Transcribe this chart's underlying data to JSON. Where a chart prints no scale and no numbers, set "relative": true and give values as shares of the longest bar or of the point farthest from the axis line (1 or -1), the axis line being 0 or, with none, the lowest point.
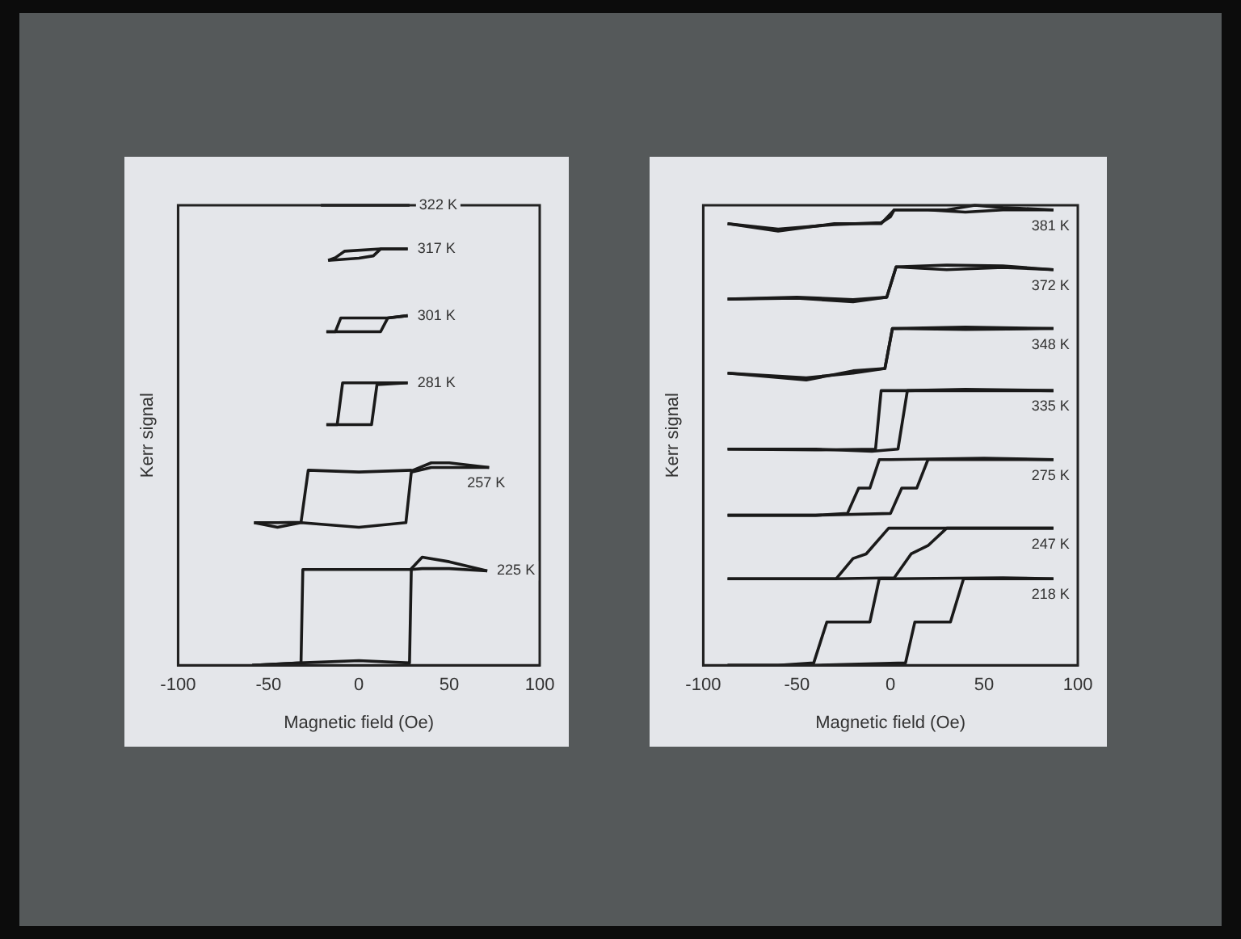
{
  "chart_data": [
    {
      "type": "line",
      "xlabel": "Magnetic field (Oe)",
      "ylabel": "Kerr signal",
      "xlim": [
        -100,
        100
      ],
      "xticks": [
        -100,
        -50,
        0,
        50,
        100
      ],
      "relative": true,
      "grid": false,
      "legend": false,
      "marker": "none",
      "line_style": "solid",
      "series": [
        {
          "name": "322 K",
          "color": "#1a1a1a",
          "x": [
            -21,
            28
          ],
          "values": [
            1,
            1
          ]
        },
        {
          "name": "317 K",
          "color": "#1a1a1a",
          "x": [
            -17,
            0,
            8,
            12,
            27
          ],
          "values": [
            0.88,
            0.885,
            0.89,
            0.905,
            0.905
          ]
        },
        {
          "color": "#1a1a1a",
          "x": [
            -17,
            -13,
            -8,
            12,
            27
          ],
          "values": [
            0.88,
            0.886,
            0.9,
            0.905,
            0.905
          ]
        },
        {
          "name": "301 K",
          "color": "#1a1a1a",
          "x": [
            -18,
            12,
            16,
            27
          ],
          "values": [
            0.725,
            0.725,
            0.755,
            0.76
          ]
        },
        {
          "color": "#1a1a1a",
          "x": [
            -18,
            -13,
            -10,
            16,
            27
          ],
          "values": [
            0.725,
            0.725,
            0.755,
            0.755,
            0.76
          ]
        },
        {
          "name": "281 K",
          "color": "#1a1a1a",
          "x": [
            -18,
            7,
            10,
            27
          ],
          "values": [
            0.523,
            0.523,
            0.61,
            0.614
          ]
        },
        {
          "color": "#1a1a1a",
          "x": [
            -18,
            -12,
            -9,
            10,
            27
          ],
          "values": [
            0.523,
            0.523,
            0.614,
            0.614,
            0.614
          ]
        },
        {
          "name": "257 K",
          "color": "#1a1a1a",
          "x": [
            -58,
            -45,
            -32,
            0,
            26,
            29,
            40,
            50,
            72
          ],
          "values": [
            0.31,
            0.3,
            0.31,
            0.3,
            0.31,
            0.42,
            0.43,
            0.43,
            0.43
          ]
        },
        {
          "color": "#1a1a1a",
          "x": [
            -58,
            -45,
            -32,
            -28,
            0,
            30,
            40,
            50,
            72
          ],
          "values": [
            0.31,
            0.31,
            0.311,
            0.424,
            0.42,
            0.424,
            0.44,
            0.44,
            0.43
          ]
        },
        {
          "name": "225 K",
          "color": "#1a1a1a",
          "x": [
            -59,
            -33,
            0,
            28,
            29,
            35,
            50,
            71
          ],
          "values": [
            0,
            0.005,
            0.01,
            0.005,
            0.21,
            0.235,
            0.225,
            0.205
          ]
        },
        {
          "color": "#1a1a1a",
          "x": [
            -59,
            -32,
            -31,
            0,
            29,
            35,
            50,
            71
          ],
          "values": [
            0,
            0.005,
            0.208,
            0.208,
            0.208,
            0.21,
            0.21,
            0.205
          ]
        }
      ]
    },
    {
      "type": "line",
      "xlabel": "Magnetic field (Oe)",
      "ylabel": "Kerr signal",
      "xlim": [
        -100,
        100
      ],
      "xticks": [
        -100,
        -50,
        0,
        50,
        100
      ],
      "relative": true,
      "grid": false,
      "legend": false,
      "marker": "none",
      "line_style": "solid",
      "series": [
        {
          "name": "381 K",
          "color": "#1a1a1a",
          "x": [
            -87,
            -60,
            -30,
            -5,
            2,
            20,
            40,
            60,
            87
          ],
          "values": [
            0.96,
            0.944,
            0.96,
            0.96,
            0.99,
            0.99,
            0.985,
            0.99,
            0.99
          ]
        },
        {
          "color": "#1a1a1a",
          "x": [
            -87,
            -60,
            -30,
            -5,
            0,
            2,
            30,
            45,
            60,
            87
          ],
          "values": [
            0.96,
            0.948,
            0.958,
            0.962,
            0.975,
            0.99,
            0.99,
            1,
            0.995,
            0.99
          ]
        },
        {
          "name": "372 K",
          "color": "#1a1a1a",
          "x": [
            -87,
            -50,
            -20,
            -2,
            3,
            30,
            60,
            87
          ],
          "values": [
            0.796,
            0.8,
            0.795,
            0.8,
            0.866,
            0.86,
            0.865,
            0.86
          ]
        },
        {
          "color": "#1a1a1a",
          "x": [
            -87,
            -50,
            -20,
            -2,
            3,
            30,
            60,
            87
          ],
          "values": [
            0.796,
            0.798,
            0.79,
            0.8,
            0.866,
            0.87,
            0.868,
            0.86
          ]
        },
        {
          "name": "348 K",
          "color": "#1a1a1a",
          "x": [
            -87,
            -45,
            -20,
            -3,
            1,
            40,
            87
          ],
          "values": [
            0.635,
            0.62,
            0.64,
            0.645,
            0.732,
            0.73,
            0.732
          ]
        },
        {
          "color": "#1a1a1a",
          "x": [
            -87,
            -45,
            -20,
            -3,
            1,
            40,
            87
          ],
          "values": [
            0.635,
            0.625,
            0.635,
            0.645,
            0.732,
            0.735,
            0.732
          ]
        },
        {
          "name": "335 K",
          "color": "#1a1a1a",
          "x": [
            -87,
            -40,
            -10,
            4,
            9,
            40,
            87
          ],
          "values": [
            0.47,
            0.47,
            0.465,
            0.47,
            0.597,
            0.597,
            0.597
          ]
        },
        {
          "color": "#1a1a1a",
          "x": [
            -87,
            -40,
            -8,
            -5,
            9,
            40,
            87
          ],
          "values": [
            0.47,
            0.468,
            0.47,
            0.597,
            0.597,
            0.6,
            0.597
          ]
        },
        {
          "name": "275 K",
          "color": "#1a1a1a",
          "x": [
            -87,
            -40,
            0,
            6,
            14,
            20,
            50,
            87
          ],
          "values": [
            0.326,
            0.326,
            0.33,
            0.385,
            0.385,
            0.447,
            0.447,
            0.447
          ]
        },
        {
          "color": "#1a1a1a",
          "x": [
            -87,
            -40,
            -23,
            -17,
            -11,
            -6,
            0,
            50,
            87
          ],
          "values": [
            0.326,
            0.326,
            0.33,
            0.385,
            0.385,
            0.447,
            0.447,
            0.45,
            0.447
          ]
        },
        {
          "name": "247 K",
          "color": "#1a1a1a",
          "x": [
            -87,
            -30,
            2,
            11,
            20,
            30,
            60,
            87
          ],
          "values": [
            0.188,
            0.188,
            0.19,
            0.242,
            0.26,
            0.298,
            0.298,
            0.298
          ]
        },
        {
          "color": "#1a1a1a",
          "x": [
            -87,
            -60,
            -29,
            -20,
            -13,
            -1,
            20,
            60,
            87
          ],
          "values": [
            0.188,
            0.188,
            0.188,
            0.232,
            0.242,
            0.298,
            0.298,
            0.298,
            0.298
          ]
        },
        {
          "name": "218 K",
          "color": "#1a1a1a",
          "x": [
            -87,
            -40,
            8,
            13,
            32,
            39,
            60,
            87
          ],
          "values": [
            0,
            0,
            0.005,
            0.094,
            0.094,
            0.188,
            0.188,
            0.188
          ]
        },
        {
          "color": "#1a1a1a",
          "x": [
            -87,
            -60,
            -41,
            -34,
            -11,
            -6,
            0,
            60,
            87
          ],
          "values": [
            0,
            0,
            0.005,
            0.094,
            0.094,
            0.188,
            0.188,
            0.19,
            0.188
          ]
        }
      ]
    }
  ]
}
